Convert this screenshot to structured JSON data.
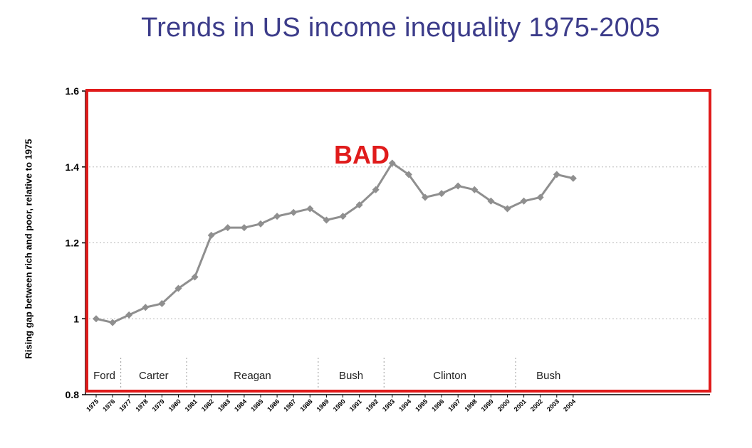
{
  "title": "Trends in US income inequality 1975-2005",
  "annotation": "BAD",
  "colors": {
    "title": "#3c3c8a",
    "line": "#8f8f8f",
    "highlight_box": "#e01b1b",
    "annotation": "#e01b1b"
  },
  "chart_data": {
    "type": "line",
    "title": "Trends in US income inequality 1975-2005",
    "xlabel": "",
    "ylabel": "Rising gap between rich and poor, relative to 1975",
    "ylim": [
      0.8,
      1.6
    ],
    "yticks": [
      "0.8",
      "1",
      "1.2",
      "1.4",
      "1.6"
    ],
    "grid": "horizontal dotted",
    "x": [
      "1975",
      "1976",
      "1977",
      "1978",
      "1979",
      "1980",
      "1981",
      "1982",
      "1983",
      "1984",
      "1985",
      "1986",
      "1987",
      "1988",
      "1989",
      "1990",
      "1991",
      "1992",
      "1993",
      "1994",
      "1995",
      "1996",
      "1997",
      "1998",
      "1999",
      "2000",
      "2001",
      "2002",
      "2003",
      "2004"
    ],
    "series": [
      {
        "values": [
          1.0,
          0.99,
          1.01,
          1.03,
          1.04,
          1.08,
          1.11,
          1.22,
          1.24,
          1.24,
          1.25,
          1.27,
          1.28,
          1.29,
          1.26,
          1.27,
          1.3,
          1.34,
          1.41,
          1.38,
          1.32,
          1.33,
          1.35,
          1.34,
          1.31,
          1.29,
          1.31,
          1.32,
          1.38,
          1.37
        ]
      }
    ],
    "eras": [
      {
        "label": "Ford",
        "from": "1975",
        "to": "1977"
      },
      {
        "label": "Carter",
        "from": "1977",
        "to": "1981"
      },
      {
        "label": "Reagan",
        "from": "1981",
        "to": "1989"
      },
      {
        "label": "Bush",
        "from": "1989",
        "to": "1993"
      },
      {
        "label": "Clinton",
        "from": "1993",
        "to": "2001"
      },
      {
        "label": "Bush",
        "from": "2001",
        "to": "2005"
      }
    ]
  }
}
